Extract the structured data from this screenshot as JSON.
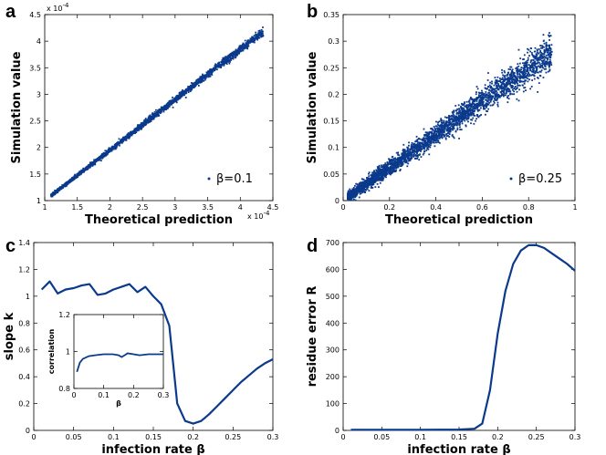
{
  "colors": {
    "series": "#0b3a8c",
    "axis": "#000000"
  },
  "chart_data": [
    {
      "id": "a",
      "panel_label": "a",
      "type": "scatter",
      "xlabel": "Theoretical prediction",
      "ylabel": "Simulation value",
      "x_multiplier": "x 10^-4",
      "y_multiplier": "x 10^-4",
      "xlim": [
        1.0,
        4.5
      ],
      "ylim": [
        1.0,
        4.5
      ],
      "xticks": [
        1,
        1.5,
        2,
        2.5,
        3,
        3.5,
        4,
        4.5
      ],
      "yticks": [
        1,
        1.5,
        2,
        2.5,
        3,
        3.5,
        4,
        4.5
      ],
      "xtick_labels": [
        "1",
        "1.5",
        "2",
        "2.5",
        "3",
        "3.5",
        "4",
        "4.5"
      ],
      "ytick_labels": [
        "1",
        "1.5",
        "2",
        "2.5",
        "3",
        "3.5",
        "4",
        "4.5"
      ],
      "legend": "β=0.1",
      "legend_position": "bottom-right",
      "trend": {
        "x_start": 1.1,
        "x_end": 4.35,
        "slope": 0.95,
        "intercept": 0.05,
        "spread": 0.03
      },
      "series": [
        {
          "name": "β=0.1",
          "values": [
            [
              1.1,
              1.1
            ],
            [
              2.0,
              1.95
            ],
            [
              3.0,
              2.9
            ],
            [
              3.8,
              3.65
            ],
            [
              4.35,
              4.1
            ]
          ]
        }
      ]
    },
    {
      "id": "b",
      "panel_label": "b",
      "type": "scatter",
      "xlabel": "Theoretical prediction",
      "ylabel": "Simulation value",
      "xlim": [
        0,
        1
      ],
      "ylim": [
        0,
        0.35
      ],
      "xticks": [
        0,
        0.2,
        0.4,
        0.6,
        0.8,
        1
      ],
      "yticks": [
        0,
        0.05,
        0.1,
        0.15,
        0.2,
        0.25,
        0.3,
        0.35
      ],
      "xtick_labels": [
        "0",
        "0.2",
        "0.4",
        "0.6",
        "0.8",
        "1"
      ],
      "ytick_labels": [
        "0",
        "0.05",
        "0.1",
        "0.15",
        "0.2",
        "0.25",
        "0.3",
        "0.35"
      ],
      "legend": "β=0.25",
      "legend_position": "bottom-right",
      "trend": {
        "x_start": 0.02,
        "x_end": 0.9,
        "slope": 0.31,
        "intercept": 0.0,
        "spread": 0.012
      },
      "series": [
        {
          "name": "β=0.25",
          "values": [
            [
              0.02,
              0.006
            ],
            [
              0.3,
              0.093
            ],
            [
              0.6,
              0.186
            ],
            [
              0.9,
              0.28
            ]
          ]
        }
      ]
    },
    {
      "id": "c",
      "panel_label": "c",
      "type": "line",
      "xlabel": "infection rate β",
      "ylabel": "slope k",
      "xlim": [
        0,
        0.3
      ],
      "ylim": [
        0,
        1.4
      ],
      "xticks": [
        0,
        0.05,
        0.1,
        0.15,
        0.2,
        0.25,
        0.3
      ],
      "yticks": [
        0,
        0.2,
        0.4,
        0.6,
        0.8,
        1,
        1.2,
        1.4
      ],
      "xtick_labels": [
        "0",
        "0.05",
        "0.1",
        "0.15",
        "0.2",
        "0.25",
        "0.3"
      ],
      "ytick_labels": [
        "0",
        "0.2",
        "0.4",
        "0.6",
        "0.8",
        "1",
        "1.2",
        "1.4"
      ],
      "x": [
        0.01,
        0.02,
        0.03,
        0.04,
        0.05,
        0.06,
        0.07,
        0.08,
        0.09,
        0.1,
        0.11,
        0.12,
        0.13,
        0.14,
        0.15,
        0.16,
        0.17,
        0.18,
        0.19,
        0.2,
        0.21,
        0.22,
        0.23,
        0.24,
        0.25,
        0.26,
        0.27,
        0.28,
        0.29,
        0.3
      ],
      "series": [
        {
          "name": "slope k",
          "values": [
            1.05,
            1.11,
            1.02,
            1.05,
            1.06,
            1.08,
            1.09,
            1.01,
            1.02,
            1.05,
            1.07,
            1.09,
            1.03,
            1.07,
            1.0,
            0.94,
            0.78,
            0.2,
            0.07,
            0.05,
            0.07,
            0.12,
            0.18,
            0.24,
            0.3,
            0.36,
            0.41,
            0.46,
            0.5,
            0.53
          ]
        }
      ],
      "inset": {
        "type": "line",
        "xlabel": "β",
        "ylabel": "correlation",
        "xlim": [
          0,
          0.3
        ],
        "ylim": [
          0.8,
          1.2
        ],
        "xticks": [
          0,
          0.1,
          0.2,
          0.3
        ],
        "yticks": [
          0.8,
          1.0,
          1.2
        ],
        "xtick_labels": [
          "0",
          "0.1",
          "0.2",
          "0.3"
        ],
        "ytick_labels": [
          "0.8",
          "1",
          "1.2"
        ],
        "x": [
          0.01,
          0.02,
          0.03,
          0.05,
          0.07,
          0.1,
          0.13,
          0.15,
          0.16,
          0.17,
          0.18,
          0.2,
          0.22,
          0.25,
          0.28,
          0.3
        ],
        "values": [
          0.89,
          0.94,
          0.96,
          0.975,
          0.98,
          0.985,
          0.985,
          0.98,
          0.97,
          0.98,
          0.99,
          0.985,
          0.98,
          0.985,
          0.985,
          0.985
        ]
      }
    },
    {
      "id": "d",
      "panel_label": "d",
      "type": "line",
      "xlabel": "infection rate β",
      "ylabel": "residue error R",
      "xlim": [
        0,
        0.3
      ],
      "ylim": [
        0,
        700
      ],
      "xticks": [
        0,
        0.05,
        0.1,
        0.15,
        0.2,
        0.25,
        0.3
      ],
      "yticks": [
        0,
        100,
        200,
        300,
        400,
        500,
        600,
        700
      ],
      "xtick_labels": [
        "0",
        "0.05",
        "0.1",
        "0.15",
        "0.2",
        "0.25",
        "0.3"
      ],
      "ytick_labels": [
        "0",
        "100",
        "200",
        "300",
        "400",
        "500",
        "600",
        "700"
      ],
      "x": [
        0.01,
        0.05,
        0.1,
        0.15,
        0.17,
        0.18,
        0.19,
        0.2,
        0.21,
        0.22,
        0.23,
        0.24,
        0.25,
        0.26,
        0.27,
        0.28,
        0.29,
        0.3
      ],
      "series": [
        {
          "name": "residue error R",
          "values": [
            2,
            2,
            2,
            3,
            6,
            25,
            150,
            360,
            520,
            620,
            670,
            690,
            690,
            680,
            660,
            640,
            620,
            595
          ]
        }
      ]
    }
  ]
}
